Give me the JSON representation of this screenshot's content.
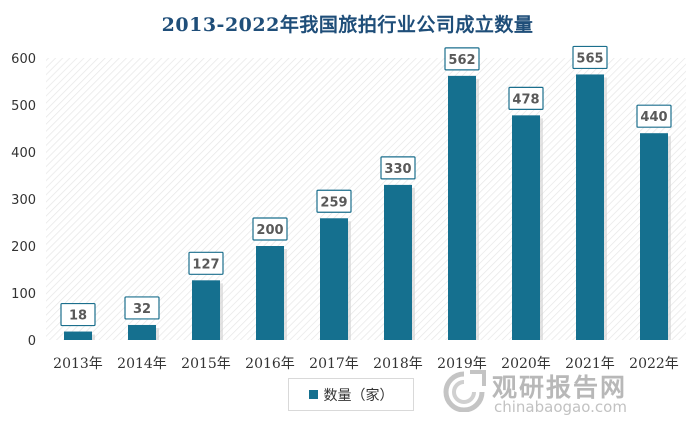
{
  "chart_data": {
    "type": "bar",
    "title": "2013-2022年我国旅拍行业公司成立数量",
    "categories": [
      "2013年",
      "2014年",
      "2015年",
      "2016年",
      "2017年",
      "2018年",
      "2019年",
      "2020年",
      "2021年",
      "2022年"
    ],
    "series": [
      {
        "name": "数量（家）",
        "values": [
          18,
          32,
          127,
          200,
          259,
          330,
          562,
          478,
          565,
          440
        ]
      }
    ],
    "ylim": [
      0,
      600
    ],
    "yticks": [
      0,
      100,
      200,
      300,
      400,
      500,
      600
    ],
    "grid": false,
    "legend_position": "bottom",
    "bar_color": "#15708f"
  },
  "watermark": {
    "name": "观研报告网",
    "url": "chinabaogao.com"
  }
}
